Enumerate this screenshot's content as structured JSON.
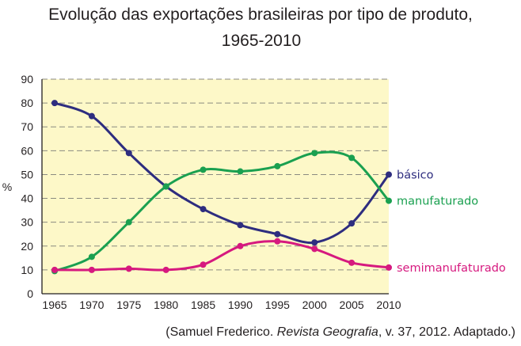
{
  "chart_data": {
    "type": "line",
    "title": "Evolução das exportações brasileiras por tipo de produto,",
    "title_line2": "1965-2010",
    "xlabel": "",
    "ylabel": "%",
    "categories": [
      "1965",
      "1970",
      "1975",
      "1980",
      "1985",
      "1990",
      "1995",
      "2000",
      "2005",
      "2010"
    ],
    "yticks": [
      "0",
      "10",
      "20",
      "30",
      "40",
      "50",
      "60",
      "70",
      "80",
      "90"
    ],
    "ylim": [
      0,
      90
    ],
    "grid": true,
    "background_color": "#fdf8c8",
    "series": [
      {
        "name": "básico",
        "color": "#2e2d7f",
        "values": [
          80,
          74.5,
          59,
          45,
          35.5,
          28.8,
          25,
          21.5,
          29.5,
          50
        ]
      },
      {
        "name": "manufaturado",
        "color": "#1aa050",
        "values": [
          9.5,
          15.5,
          30,
          45,
          52,
          51.3,
          53.5,
          59,
          57,
          39
        ]
      },
      {
        "name": "semimanufaturado",
        "color": "#d6197f",
        "values": [
          10,
          10,
          10.5,
          10,
          12.2,
          20,
          22,
          18.8,
          13,
          11
        ]
      }
    ],
    "source": {
      "prefix": "(Samuel Frederico. ",
      "journal": "Revista Geografia",
      "suffix": ", v. 37, 2012. Adaptado.)"
    }
  }
}
